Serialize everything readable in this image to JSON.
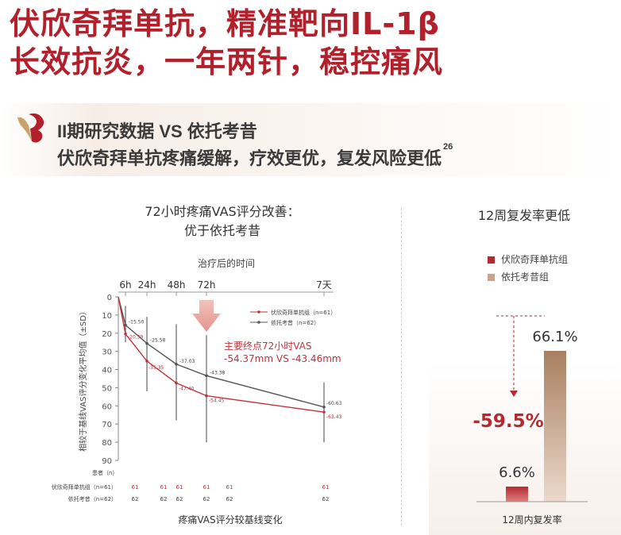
{
  "headline": {
    "line1": "伏欣奇拜单抗，精准靶向IL-1β",
    "line2": "长效抗炎，一年两针，稳控痛风"
  },
  "section": {
    "line1": "II期研究数据 VS 依托考昔",
    "line2": "伏欣奇拜单抗疼痛缓解，疗效更优，复发风险更低",
    "ref": "26"
  },
  "colors": {
    "brand": "#b2202b",
    "series1": "#c0333b",
    "series2": "#555555",
    "bar1": "#b52a30",
    "bar2": "#c9a38a"
  },
  "chart_data": [
    {
      "type": "line",
      "title": "72小时疼痛VAS评分改善：\n优于依托考昔",
      "title_lines": [
        "72小时疼痛VAS评分改善：",
        "优于依托考昔"
      ],
      "top_axis_label": "治疗后的时间",
      "x_tick_labels": [
        "6h",
        "24h",
        "48h",
        "72h",
        "7天"
      ],
      "ylabel": "相较于基线VAS评分变化平均值（±SD）",
      "y_ticks": [
        0,
        10,
        20,
        30,
        40,
        50,
        60,
        70,
        80,
        90
      ],
      "ylim": [
        0,
        90
      ],
      "y_inverted": true,
      "xlabel": "疼痛VAS评分较基线变化",
      "legend_position": "top-right",
      "series": [
        {
          "name": "伏欣奇拜单抗组（n=61）",
          "x": [
            0,
            6,
            24,
            48,
            72,
            168
          ],
          "values": [
            0,
            20.39,
            35.35,
            47.4,
            54.45,
            63.43
          ],
          "labels": [
            "-20.39",
            "-35.35",
            "-47.40",
            "-54.45",
            "-63.43"
          ]
        },
        {
          "name": "依托考昔（n=62）",
          "x": [
            0,
            6,
            24,
            48,
            72,
            168
          ],
          "values": [
            0,
            15.5,
            25.58,
            37.03,
            43.38,
            60.63
          ],
          "labels": [
            "-15.50",
            "-25.58",
            "-37.03",
            "-43.38",
            "-60.63"
          ]
        }
      ],
      "annotation": {
        "line1": "主要终点72小时VAS",
        "line2": "-54.37mm VS -43.46mm"
      },
      "patients_table": {
        "header": "患者（n）",
        "rows": [
          {
            "label": "伏欣奇拜单抗组（n=61）",
            "values": [
              "61",
              "61",
              "61",
              "61",
              "61",
              "61"
            ]
          },
          {
            "label": "依托考昔（n=62）",
            "values": [
              "62",
              "62",
              "62",
              "62",
              "62",
              "62"
            ]
          }
        ]
      }
    },
    {
      "type": "bar",
      "title": "12周复发率更低",
      "categories": [
        "伏欣奇拜单抗组",
        "依托考昔组"
      ],
      "values": [
        6.6,
        66.1
      ],
      "value_labels": [
        "6.6%",
        "66.1%"
      ],
      "xlabel": "12周内复发率",
      "ylim": [
        0,
        70
      ],
      "legend_position": "top",
      "annotation": "-59.5%"
    }
  ]
}
